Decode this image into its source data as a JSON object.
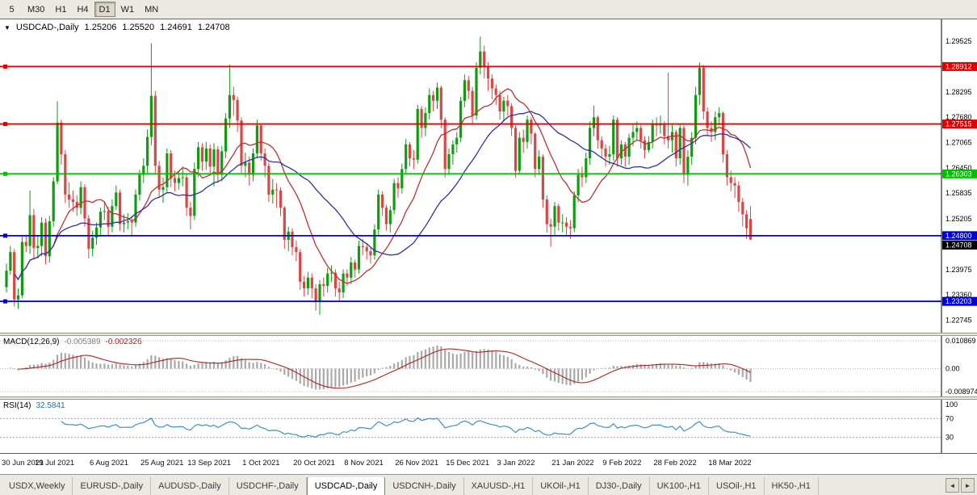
{
  "toolbar": {
    "timeframes": [
      {
        "label": "5",
        "active": false
      },
      {
        "label": "M30",
        "active": false
      },
      {
        "label": "H1",
        "active": false
      },
      {
        "label": "H4",
        "active": false
      },
      {
        "label": "D1",
        "active": true
      },
      {
        "label": "W1",
        "active": false
      },
      {
        "label": "MN",
        "active": false
      }
    ]
  },
  "chart": {
    "title": {
      "dropdown_icon": "▼",
      "symbol": "USDCAD-,Daily",
      "open": "1.25206",
      "high": "1.25520",
      "low": "1.24691",
      "close": "1.24708"
    }
  },
  "chart_data": {
    "type": "candlestick",
    "symbol": "USDCAD",
    "timeframe": "Daily",
    "price_range": [
      1.2252,
      1.2998
    ],
    "y_ticks": [
      "1.29525",
      "1.28295",
      "1.27680",
      "1.27065",
      "1.26450",
      "1.25835",
      "1.25205",
      "1.23975",
      "1.23360",
      "1.22745"
    ],
    "hlines": [
      {
        "price": 1.28912,
        "label": "1.28912",
        "color": "#e00000"
      },
      {
        "price": 1.27515,
        "label": "1.27515",
        "color": "#e00000"
      },
      {
        "price": 1.26303,
        "label": "1.26303",
        "color": "#00c000"
      },
      {
        "price": 1.248,
        "label": "1.24800",
        "color": "#0000d8"
      },
      {
        "price": 1.23203,
        "label": "1.23203",
        "color": "#0000d8"
      }
    ],
    "current_price": {
      "value": 1.24708,
      "label": "1.24708",
      "bg": "#000000"
    },
    "moving_averages": [
      {
        "name": "ma-fast",
        "period": 13,
        "color": "#c03030"
      },
      {
        "name": "ma-slow",
        "period": 30,
        "color": "#3030a8"
      }
    ],
    "x_tick_indices": [
      0,
      13,
      27,
      40,
      52,
      66,
      79,
      92,
      105,
      118,
      131,
      145,
      158,
      171,
      185
    ],
    "x_tick_labels": [
      "30 Jun 2021",
      "19 Jul 2021",
      "6 Aug 2021",
      "25 Aug 2021",
      "13 Sep 2021",
      "1 Oct 2021",
      "20 Oct 2021",
      "8 Nov 2021",
      "26 Nov 2021",
      "15 Dec 2021",
      "3 Jan 2022",
      "21 Jan 2022",
      "9 Feb 2022",
      "28 Feb 2022",
      "18 Mar 2022"
    ],
    "ohlc": [
      [
        1.2355,
        1.2412,
        1.2342,
        1.2395
      ],
      [
        1.2395,
        1.2455,
        1.2385,
        1.244
      ],
      [
        1.244,
        1.2448,
        1.2308,
        1.2325
      ],
      [
        1.2325,
        1.2352,
        1.2302,
        1.2335
      ],
      [
        1.2335,
        1.2478,
        1.2328,
        1.2465
      ],
      [
        1.2465,
        1.2482,
        1.244,
        1.2455
      ],
      [
        1.2455,
        1.259,
        1.2436,
        1.253
      ],
      [
        1.253,
        1.2545,
        1.2422,
        1.245
      ],
      [
        1.245,
        1.248,
        1.2425,
        1.2455
      ],
      [
        1.2455,
        1.2525,
        1.243,
        1.2512
      ],
      [
        1.2512,
        1.2522,
        1.241,
        1.243
      ],
      [
        1.243,
        1.2528,
        1.2415,
        1.2515
      ],
      [
        1.2515,
        1.2622,
        1.2502,
        1.2612
      ],
      [
        1.2612,
        1.2807,
        1.2605,
        1.2755
      ],
      [
        1.2755,
        1.2762,
        1.2652,
        1.2678
      ],
      [
        1.2678,
        1.2688,
        1.256,
        1.258
      ],
      [
        1.258,
        1.261,
        1.2548,
        1.2568
      ],
      [
        1.2568,
        1.259,
        1.2538,
        1.2562
      ],
      [
        1.2562,
        1.2578,
        1.2528,
        1.2548
      ],
      [
        1.2548,
        1.2612,
        1.2532,
        1.2598
      ],
      [
        1.2598,
        1.2605,
        1.2502,
        1.2522
      ],
      [
        1.2522,
        1.253,
        1.2425,
        1.2448
      ],
      [
        1.2448,
        1.2492,
        1.243,
        1.2475
      ],
      [
        1.2475,
        1.2512,
        1.2458,
        1.25
      ],
      [
        1.25,
        1.2548,
        1.2478,
        1.2538
      ],
      [
        1.2538,
        1.2562,
        1.2518,
        1.254
      ],
      [
        1.254,
        1.255,
        1.248,
        1.2502
      ],
      [
        1.2502,
        1.2568,
        1.2488,
        1.2552
      ],
      [
        1.2552,
        1.2602,
        1.2542,
        1.2585
      ],
      [
        1.2585,
        1.2592,
        1.2492,
        1.2508
      ],
      [
        1.2508,
        1.2532,
        1.2488,
        1.2512
      ],
      [
        1.2512,
        1.2535,
        1.2495,
        1.2515
      ],
      [
        1.2515,
        1.2528,
        1.2478,
        1.2512
      ],
      [
        1.2512,
        1.2592,
        1.2502,
        1.258
      ],
      [
        1.258,
        1.264,
        1.2565,
        1.2628
      ],
      [
        1.2628,
        1.2668,
        1.2608,
        1.265
      ],
      [
        1.265,
        1.2738,
        1.2632,
        1.272
      ],
      [
        1.272,
        1.2948,
        1.27,
        1.282
      ],
      [
        1.282,
        1.2832,
        1.2628,
        1.265
      ],
      [
        1.265,
        1.2662,
        1.2572,
        1.2592
      ],
      [
        1.2592,
        1.2622,
        1.256,
        1.2598
      ],
      [
        1.2598,
        1.2692,
        1.2585,
        1.268
      ],
      [
        1.268,
        1.2688,
        1.2598,
        1.262
      ],
      [
        1.262,
        1.2638,
        1.2588,
        1.2608
      ],
      [
        1.2608,
        1.2638,
        1.2592,
        1.262
      ],
      [
        1.262,
        1.2648,
        1.26,
        1.2622
      ],
      [
        1.2622,
        1.263,
        1.2528,
        1.2548
      ],
      [
        1.2548,
        1.2562,
        1.2495,
        1.2528
      ],
      [
        1.2528,
        1.2658,
        1.2518,
        1.2642
      ],
      [
        1.2642,
        1.2708,
        1.2622,
        1.2695
      ],
      [
        1.2695,
        1.2705,
        1.2638,
        1.266
      ],
      [
        1.266,
        1.2708,
        1.264,
        1.2692
      ],
      [
        1.2692,
        1.2702,
        1.2628,
        1.2648
      ],
      [
        1.2648,
        1.2705,
        1.26,
        1.269
      ],
      [
        1.269,
        1.2698,
        1.2608,
        1.2628
      ],
      [
        1.2628,
        1.2698,
        1.2612,
        1.2685
      ],
      [
        1.2685,
        1.2778,
        1.2668,
        1.2765
      ],
      [
        1.2765,
        1.2896,
        1.2742,
        1.2822
      ],
      [
        1.2822,
        1.2842,
        1.2772,
        1.281
      ],
      [
        1.281,
        1.2818,
        1.2732,
        1.276
      ],
      [
        1.276,
        1.2768,
        1.2632,
        1.265
      ],
      [
        1.265,
        1.2682,
        1.2622,
        1.2658
      ],
      [
        1.2658,
        1.2672,
        1.2602,
        1.2628
      ],
      [
        1.2628,
        1.2692,
        1.2612,
        1.268
      ],
      [
        1.268,
        1.2762,
        1.2668,
        1.2748
      ],
      [
        1.2748,
        1.2752,
        1.2662,
        1.268
      ],
      [
        1.268,
        1.2692,
        1.2622,
        1.265
      ],
      [
        1.265,
        1.2658,
        1.2562,
        1.258
      ],
      [
        1.258,
        1.2618,
        1.2558,
        1.2592
      ],
      [
        1.2592,
        1.2608,
        1.2548,
        1.259
      ],
      [
        1.259,
        1.2598,
        1.2528,
        1.2548
      ],
      [
        1.2548,
        1.2552,
        1.2448,
        1.247
      ],
      [
        1.247,
        1.2502,
        1.2442,
        1.249
      ],
      [
        1.249,
        1.2498,
        1.2432,
        1.2452
      ],
      [
        1.2452,
        1.2468,
        1.2418,
        1.244
      ],
      [
        1.244,
        1.2448,
        1.2348,
        1.2368
      ],
      [
        1.2368,
        1.2382,
        1.2332,
        1.2352
      ],
      [
        1.2352,
        1.2392,
        1.2336,
        1.2378
      ],
      [
        1.2378,
        1.2388,
        1.2328,
        1.2352
      ],
      [
        1.2352,
        1.2362,
        1.2298,
        1.2322
      ],
      [
        1.2322,
        1.2372,
        1.2288,
        1.2362
      ],
      [
        1.2362,
        1.2378,
        1.2332,
        1.2358
      ],
      [
        1.2358,
        1.2402,
        1.2342,
        1.2388
      ],
      [
        1.2388,
        1.2408,
        1.2368,
        1.239
      ],
      [
        1.239,
        1.2398,
        1.2332,
        1.2352
      ],
      [
        1.2352,
        1.2368,
        1.2322,
        1.2342
      ],
      [
        1.2342,
        1.2398,
        1.2328,
        1.2388
      ],
      [
        1.2388,
        1.2398,
        1.2358,
        1.2378
      ],
      [
        1.2378,
        1.2428,
        1.2362,
        1.2415
      ],
      [
        1.2415,
        1.2422,
        1.2378,
        1.2398
      ],
      [
        1.2398,
        1.2468,
        1.2388,
        1.2455
      ],
      [
        1.2455,
        1.2472,
        1.2432,
        1.2452
      ],
      [
        1.2452,
        1.2462,
        1.2422,
        1.2442
      ],
      [
        1.2442,
        1.2452,
        1.2412,
        1.2432
      ],
      [
        1.2432,
        1.2508,
        1.2422,
        1.2495
      ],
      [
        1.2495,
        1.2592,
        1.2482,
        1.258
      ],
      [
        1.258,
        1.2588,
        1.2528,
        1.2548
      ],
      [
        1.2548,
        1.2555,
        1.2492,
        1.2508
      ],
      [
        1.2508,
        1.2552,
        1.2488,
        1.2542
      ],
      [
        1.2542,
        1.2618,
        1.2532,
        1.2608
      ],
      [
        1.2608,
        1.2622,
        1.2572,
        1.2595
      ],
      [
        1.2595,
        1.2655,
        1.2582,
        1.2642
      ],
      [
        1.2642,
        1.2715,
        1.2632,
        1.2702
      ],
      [
        1.2702,
        1.2708,
        1.2648,
        1.2668
      ],
      [
        1.2668,
        1.2688,
        1.2642,
        1.2665
      ],
      [
        1.2665,
        1.2798,
        1.2655,
        1.2788
      ],
      [
        1.2788,
        1.2795,
        1.2718,
        1.2742
      ],
      [
        1.2742,
        1.2792,
        1.2722,
        1.2778
      ],
      [
        1.2778,
        1.2838,
        1.2762,
        1.2822
      ],
      [
        1.2822,
        1.2832,
        1.2782,
        1.2808
      ],
      [
        1.2808,
        1.2852,
        1.2788,
        1.284
      ],
      [
        1.284,
        1.2845,
        1.2742,
        1.2762
      ],
      [
        1.2762,
        1.2768,
        1.2622,
        1.2642
      ],
      [
        1.2642,
        1.2692,
        1.2628,
        1.2678
      ],
      [
        1.2678,
        1.2712,
        1.2652,
        1.2702
      ],
      [
        1.2702,
        1.2732,
        1.2682,
        1.2718
      ],
      [
        1.2718,
        1.2818,
        1.2708,
        1.2808
      ],
      [
        1.2808,
        1.2872,
        1.2792,
        1.2858
      ],
      [
        1.2858,
        1.2868,
        1.2812,
        1.2832
      ],
      [
        1.2832,
        1.2842,
        1.2752,
        1.2772
      ],
      [
        1.2772,
        1.2902,
        1.2762,
        1.2888
      ],
      [
        1.2888,
        1.2964,
        1.2872,
        1.2928
      ],
      [
        1.2928,
        1.2942,
        1.2862,
        1.2892
      ],
      [
        1.2892,
        1.2902,
        1.2832,
        1.2862
      ],
      [
        1.2862,
        1.2872,
        1.2812,
        1.2838
      ],
      [
        1.2838,
        1.2848,
        1.2798,
        1.2822
      ],
      [
        1.2822,
        1.2832,
        1.2762,
        1.2782
      ],
      [
        1.2782,
        1.2818,
        1.2758,
        1.2808
      ],
      [
        1.2808,
        1.2822,
        1.2772,
        1.2795
      ],
      [
        1.2795,
        1.2802,
        1.2722,
        1.2742
      ],
      [
        1.2742,
        1.2748,
        1.2622,
        1.2638
      ],
      [
        1.2638,
        1.2732,
        1.2628,
        1.2718
      ],
      [
        1.2718,
        1.2738,
        1.2682,
        1.2708
      ],
      [
        1.2708,
        1.2772,
        1.2692,
        1.2762
      ],
      [
        1.2762,
        1.2768,
        1.2702,
        1.2728
      ],
      [
        1.2728,
        1.2732,
        1.2622,
        1.2642
      ],
      [
        1.2642,
        1.2688,
        1.2628,
        1.2672
      ],
      [
        1.2672,
        1.2678,
        1.2548,
        1.2568
      ],
      [
        1.2568,
        1.2578,
        1.2488,
        1.2508
      ],
      [
        1.2508,
        1.2522,
        1.2453,
        1.2502
      ],
      [
        1.2502,
        1.2562,
        1.2482,
        1.2552
      ],
      [
        1.2552,
        1.2558,
        1.2492,
        1.2512
      ],
      [
        1.2512,
        1.2532,
        1.2488,
        1.2512
      ],
      [
        1.2512,
        1.2525,
        1.2482,
        1.2502
      ],
      [
        1.2502,
        1.2518,
        1.2472,
        1.2498
      ],
      [
        1.2498,
        1.2588,
        1.2488,
        1.2578
      ],
      [
        1.2578,
        1.2642,
        1.2562,
        1.2628
      ],
      [
        1.2628,
        1.2648,
        1.2598,
        1.2622
      ],
      [
        1.2622,
        1.2682,
        1.2608,
        1.2668
      ],
      [
        1.2668,
        1.2758,
        1.2652,
        1.2742
      ],
      [
        1.2742,
        1.2796,
        1.2722,
        1.2768
      ],
      [
        1.2768,
        1.2772,
        1.2692,
        1.2712
      ],
      [
        1.2712,
        1.2722,
        1.2668,
        1.2692
      ],
      [
        1.2692,
        1.2702,
        1.2648,
        1.2672
      ],
      [
        1.2672,
        1.2698,
        1.2652,
        1.2678
      ],
      [
        1.2678,
        1.2772,
        1.2662,
        1.2762
      ],
      [
        1.2762,
        1.2768,
        1.2648,
        1.2668
      ],
      [
        1.2668,
        1.2712,
        1.2652,
        1.2702
      ],
      [
        1.2702,
        1.2708,
        1.2648,
        1.2672
      ],
      [
        1.2672,
        1.2728,
        1.2652,
        1.2718
      ],
      [
        1.2718,
        1.2752,
        1.2698,
        1.2732
      ],
      [
        1.2732,
        1.2758,
        1.2712,
        1.2742
      ],
      [
        1.2742,
        1.2748,
        1.2692,
        1.2712
      ],
      [
        1.2712,
        1.2722,
        1.2668,
        1.2688
      ],
      [
        1.2688,
        1.2722,
        1.2682,
        1.2708
      ],
      [
        1.2708,
        1.2762,
        1.2692,
        1.2752
      ],
      [
        1.2752,
        1.2768,
        1.2722,
        1.2748
      ],
      [
        1.2748,
        1.2772,
        1.2728,
        1.2752
      ],
      [
        1.2752,
        1.2758,
        1.2702,
        1.2722
      ],
      [
        1.2722,
        1.2877,
        1.2692,
        1.2712
      ],
      [
        1.2712,
        1.2752,
        1.2682,
        1.2732
      ],
      [
        1.2732,
        1.2738,
        1.2648,
        1.2668
      ],
      [
        1.2668,
        1.2752,
        1.2652,
        1.2742
      ],
      [
        1.2742,
        1.2748,
        1.2608,
        1.2628
      ],
      [
        1.2628,
        1.2688,
        1.2602,
        1.2672
      ],
      [
        1.2672,
        1.2732,
        1.2652,
        1.2718
      ],
      [
        1.2718,
        1.2842,
        1.2702,
        1.2822
      ],
      [
        1.2822,
        1.2901,
        1.2798,
        1.2888
      ],
      [
        1.2888,
        1.2895,
        1.2762,
        1.2782
      ],
      [
        1.2782,
        1.2792,
        1.2722,
        1.2742
      ],
      [
        1.2742,
        1.2758,
        1.2708,
        1.2732
      ],
      [
        1.2732,
        1.2782,
        1.2712,
        1.2768
      ],
      [
        1.2768,
        1.2792,
        1.2748,
        1.2778
      ],
      [
        1.2778,
        1.2782,
        1.2658,
        1.2678
      ],
      [
        1.2678,
        1.2688,
        1.2602,
        1.2622
      ],
      [
        1.2622,
        1.2638,
        1.2588,
        1.2608
      ],
      [
        1.2608,
        1.2622,
        1.2572,
        1.2602
      ],
      [
        1.2602,
        1.2612,
        1.2538,
        1.2562
      ],
      [
        1.2562,
        1.2572,
        1.2502,
        1.2532
      ],
      [
        1.2532,
        1.2542,
        1.2472,
        1.2498
      ],
      [
        1.25206,
        1.2552,
        1.24691,
        1.24708
      ]
    ],
    "indicators": {
      "macd": {
        "name": "MACD(12,26,9)",
        "value_main": "-0.005389",
        "value_signal": "-0.002326",
        "fast": 12,
        "slow": 26,
        "signal": 9,
        "axis_labels": [
          "0.010869",
          "0.00",
          "-0.008974"
        ],
        "axis_values": [
          0.010869,
          0,
          -0.008974
        ],
        "range": [
          -0.008974,
          0.010869
        ]
      },
      "rsi": {
        "name": "RSI(14)",
        "value": "32.5841",
        "period": 14,
        "axis_labels": [
          "100",
          "70",
          "30"
        ],
        "axis_values": [
          100,
          70,
          30
        ],
        "levels": [
          70,
          30
        ],
        "range": [
          0,
          100
        ]
      }
    }
  },
  "tabbar": {
    "tabs": [
      {
        "label": "USDX,Weekly",
        "active": false
      },
      {
        "label": "EURUSD-,Daily",
        "active": false
      },
      {
        "label": "AUDUSD-,Daily",
        "active": false
      },
      {
        "label": "USDCHF-,Daily",
        "active": false
      },
      {
        "label": "USDCAD-,Daily",
        "active": true
      },
      {
        "label": "USDCNH-,Daily",
        "active": false
      },
      {
        "label": "XAUUSD-,H1",
        "active": false
      },
      {
        "label": "UKOil-,H1",
        "active": false
      },
      {
        "label": "DJ30-,Daily",
        "active": false
      },
      {
        "label": "UK100-,H1",
        "active": false
      },
      {
        "label": "USOil-,H1",
        "active": false
      },
      {
        "label": "HK50-,H1",
        "active": false
      }
    ],
    "scroll_left": "◄",
    "scroll_right": "►"
  },
  "colors": {
    "chart_bg": "#ffffff",
    "panel_bg": "#ece9e2",
    "up": "#0f9d0f",
    "down": "#dd4444",
    "ma_fast": "#c03030",
    "ma_slow": "#3030a8",
    "macd_hist": "#a9a9a9",
    "macd_signal": "#b22222",
    "rsi": "#3f8fc4",
    "level_dotted": "#9e9ec8",
    "grid_dotted": "#b8b8b8"
  }
}
